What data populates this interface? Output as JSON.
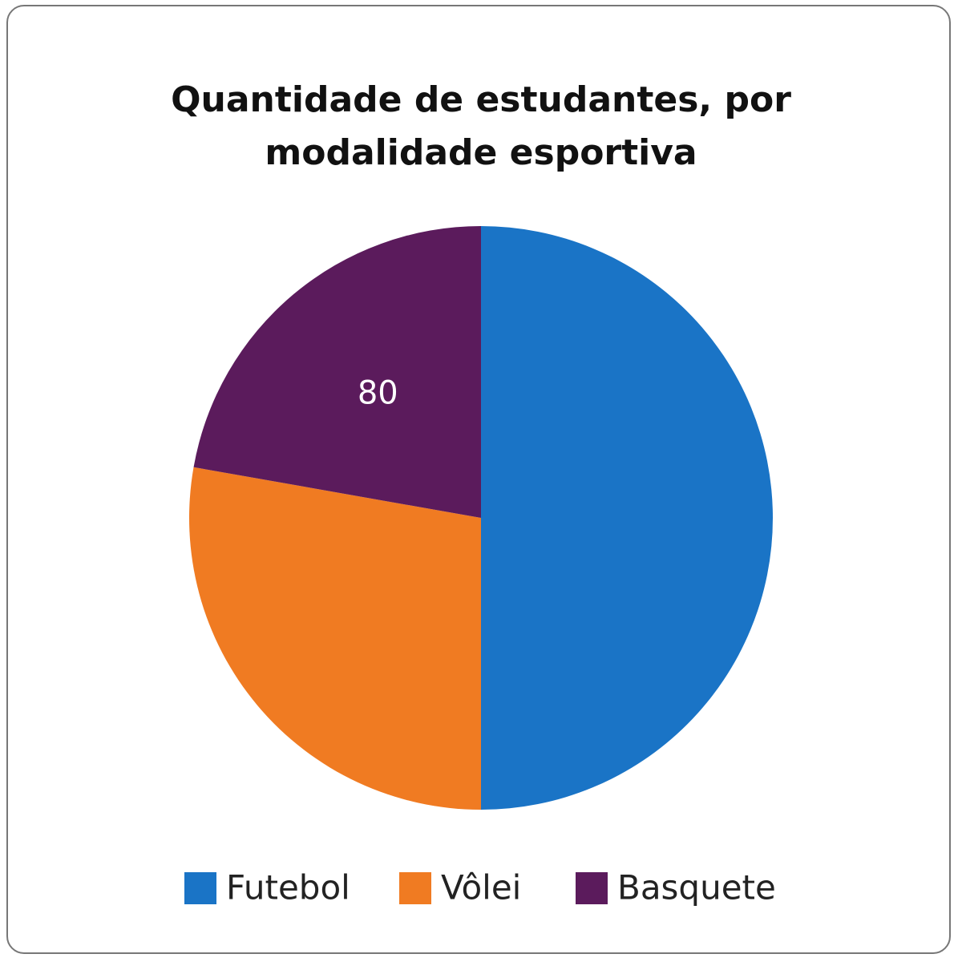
{
  "chart_data": {
    "type": "pie",
    "title": "Quantidade de estudantes, por modalidade esportiva",
    "categories": [
      "Futebol",
      "Vôlei",
      "Basquete"
    ],
    "values": [
      180,
      100,
      80
    ],
    "value_labels": [
      null,
      null,
      "80"
    ],
    "colors": [
      "#1a74c6",
      "#f07b22",
      "#5b1b5c"
    ],
    "legend": "bottom"
  }
}
